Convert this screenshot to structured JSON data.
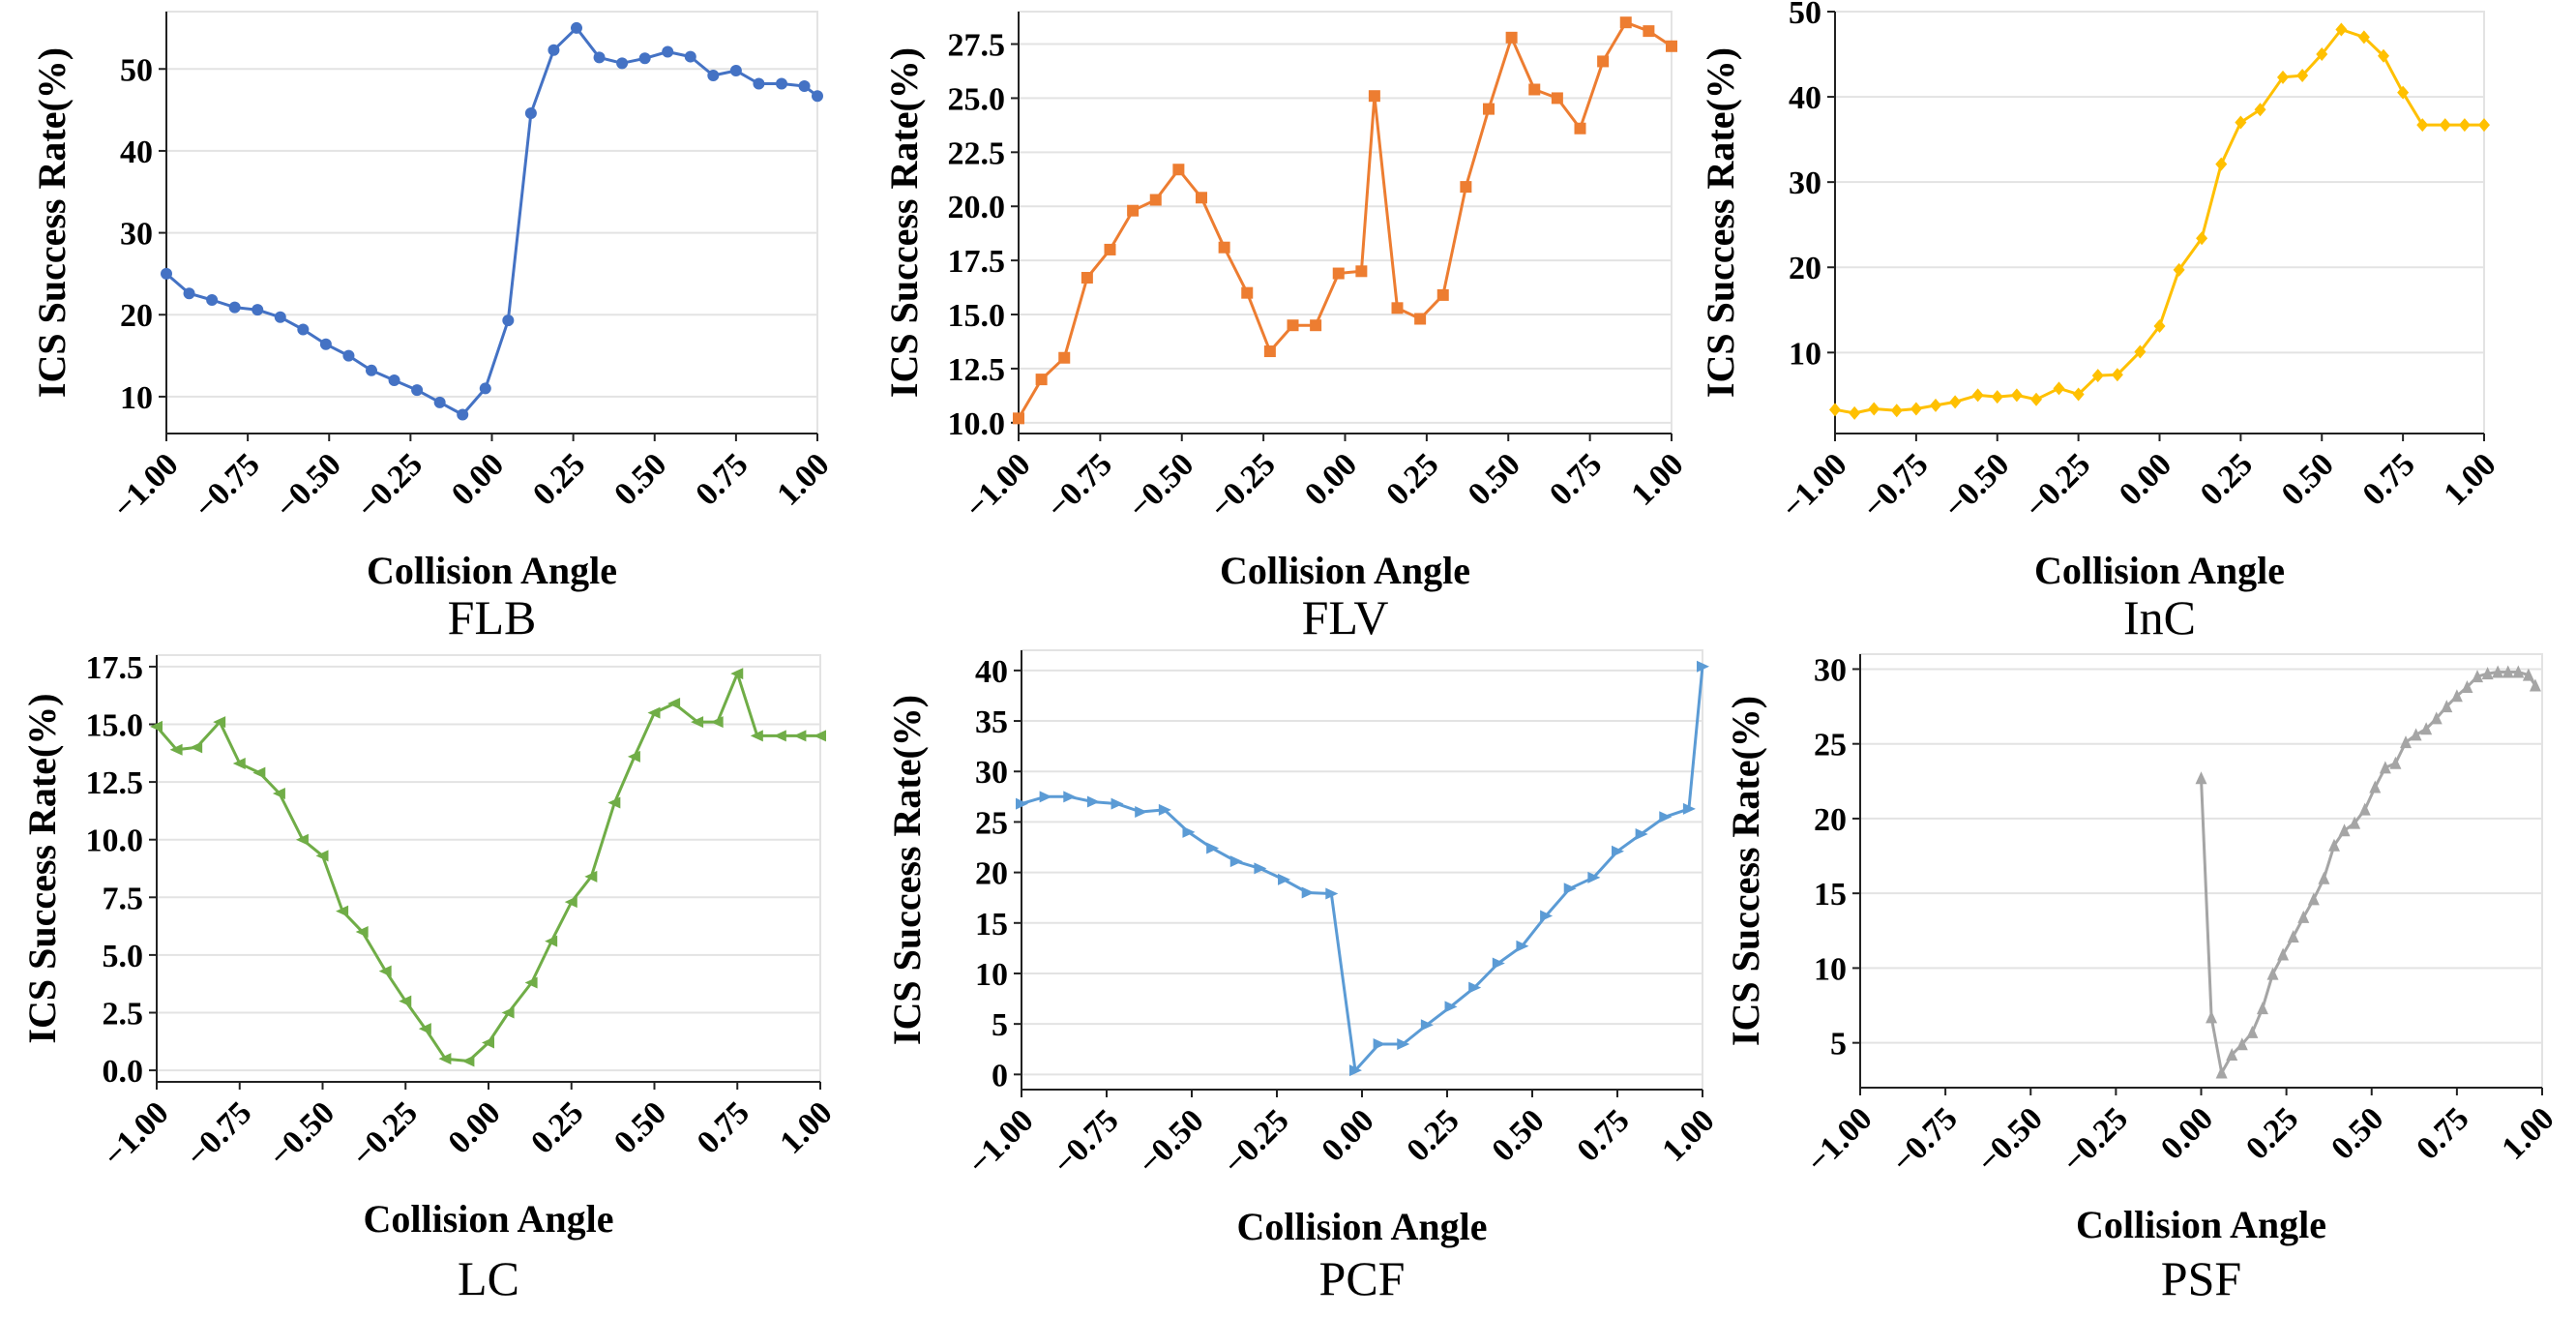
{
  "chart_data": [
    {
      "type": "line",
      "caption": "FLB",
      "xlabel": "Collision Angle",
      "ylabel": "ICS Success Rate(%)",
      "color": "#4472C4",
      "marker": "circle",
      "xlim": [
        -1.0,
        1.0
      ],
      "ylim": [
        5.5,
        57
      ],
      "xticks": [
        "-1.00",
        "-0.75",
        "-0.50",
        "-0.25",
        "0.00",
        "0.25",
        "0.50",
        "0.75",
        "1.00"
      ],
      "yticks": [
        "10",
        "20",
        "30",
        "40",
        "50"
      ],
      "x": [
        -1.0,
        -0.93,
        -0.86,
        -0.79,
        -0.72,
        -0.65,
        -0.58,
        -0.51,
        -0.44,
        -0.37,
        -0.3,
        -0.23,
        -0.16,
        -0.09,
        -0.02,
        0.05,
        0.12,
        0.19,
        0.26,
        0.33,
        0.4,
        0.47,
        0.54,
        0.61,
        0.68,
        0.75,
        0.82,
        0.89,
        0.96,
        1.0
      ],
      "y": [
        25.0,
        22.6,
        21.8,
        20.9,
        20.6,
        19.7,
        18.2,
        16.4,
        15.0,
        13.2,
        12.0,
        10.8,
        9.3,
        7.8,
        11.0,
        19.3,
        44.6,
        52.3,
        55.0,
        51.4,
        50.7,
        51.3,
        52.1,
        51.5,
        49.2,
        49.8,
        48.2,
        48.2,
        47.9,
        46.7
      ]
    },
    {
      "type": "line",
      "caption": "FLV",
      "xlabel": "Collision Angle",
      "ylabel": "ICS Success Rate(%)",
      "color": "#ED7D31",
      "marker": "square",
      "xlim": [
        -1.0,
        1.0
      ],
      "ylim": [
        9.5,
        29.0
      ],
      "xticks": [
        "-1.00",
        "-0.75",
        "-0.50",
        "-0.25",
        "0.00",
        "0.25",
        "0.50",
        "0.75",
        "1.00"
      ],
      "yticks": [
        "10.0",
        "12.5",
        "15.0",
        "17.5",
        "20.0",
        "22.5",
        "25.0",
        "27.5"
      ],
      "x": [
        -1.0,
        -0.93,
        -0.86,
        -0.79,
        -0.72,
        -0.65,
        -0.58,
        -0.51,
        -0.44,
        -0.37,
        -0.3,
        -0.23,
        -0.16,
        -0.09,
        -0.02,
        0.05,
        0.09,
        0.16,
        0.23,
        0.3,
        0.37,
        0.44,
        0.51,
        0.58,
        0.65,
        0.72,
        0.79,
        0.86,
        0.93,
        1.0
      ],
      "y": [
        10.2,
        12.0,
        13.0,
        16.7,
        18.0,
        19.8,
        20.3,
        21.7,
        20.4,
        18.1,
        16.0,
        13.3,
        14.5,
        14.5,
        16.9,
        17.0,
        25.1,
        15.3,
        14.8,
        15.9,
        20.9,
        24.5,
        27.8,
        25.4,
        25.0,
        23.6,
        26.7,
        28.5,
        28.1,
        27.4
      ]
    },
    {
      "type": "line",
      "caption": "InC",
      "xlabel": "Collision Angle",
      "ylabel": "ICS Success Rate(%)",
      "color": "#FFC000",
      "marker": "diamond",
      "xlim": [
        -1.0,
        1.0
      ],
      "ylim": [
        0.5,
        50.0
      ],
      "xticks": [
        "-1.00",
        "-0.75",
        "-0.50",
        "-0.25",
        "0.00",
        "0.25",
        "0.50",
        "0.75",
        "1.00"
      ],
      "yticks": [
        "10",
        "20",
        "30",
        "40",
        "50"
      ],
      "x": [
        -1.0,
        -0.94,
        -0.88,
        -0.81,
        -0.75,
        -0.69,
        -0.63,
        -0.56,
        -0.5,
        -0.44,
        -0.38,
        -0.31,
        -0.25,
        -0.19,
        -0.13,
        -0.06,
        0.0,
        0.06,
        0.13,
        0.19,
        0.25,
        0.31,
        0.38,
        0.44,
        0.5,
        0.56,
        0.63,
        0.69,
        0.75,
        0.81,
        0.88,
        0.94,
        1.0
      ],
      "y": [
        3.3,
        2.9,
        3.4,
        3.2,
        3.4,
        3.8,
        4.2,
        5.0,
        4.8,
        5.0,
        4.5,
        5.8,
        5.1,
        7.3,
        7.4,
        10.1,
        13.1,
        19.7,
        23.4,
        32.1,
        37.0,
        38.5,
        42.3,
        42.5,
        45.0,
        47.9,
        47.0,
        44.8,
        40.5,
        36.7,
        36.7,
        36.7,
        36.7
      ]
    },
    {
      "type": "line",
      "caption": "LC",
      "xlabel": "Collision Angle",
      "ylabel": "ICS Success Rate(%)",
      "color": "#70AD47",
      "marker": "triangle-left",
      "xlim": [
        -1.0,
        1.0
      ],
      "ylim": [
        -0.5,
        18.0
      ],
      "xticks": [
        "-1.00",
        "-0.75",
        "-0.50",
        "-0.25",
        "0.00",
        "0.25",
        "0.50",
        "0.75",
        "1.00"
      ],
      "yticks": [
        "0.0",
        "2.5",
        "5.0",
        "7.5",
        "10.0",
        "12.5",
        "15.0",
        "17.5"
      ],
      "x": [
        -1.0,
        -0.94,
        -0.88,
        -0.81,
        -0.75,
        -0.69,
        -0.63,
        -0.56,
        -0.5,
        -0.44,
        -0.38,
        -0.31,
        -0.25,
        -0.19,
        -0.13,
        -0.06,
        0.0,
        0.06,
        0.13,
        0.19,
        0.25,
        0.31,
        0.38,
        0.44,
        0.5,
        0.56,
        0.63,
        0.69,
        0.75,
        0.81,
        0.88,
        0.94,
        1.0
      ],
      "y": [
        14.9,
        13.9,
        14.0,
        15.1,
        13.3,
        12.9,
        12.0,
        10.0,
        9.3,
        6.9,
        6.0,
        4.3,
        3.0,
        1.8,
        0.5,
        0.4,
        1.2,
        2.5,
        3.8,
        5.6,
        7.3,
        8.4,
        11.6,
        13.6,
        15.5,
        15.9,
        15.1,
        15.1,
        17.2,
        14.5,
        14.5,
        14.5,
        14.5
      ]
    },
    {
      "type": "line",
      "caption": "PCF",
      "xlabel": "Collision Angle",
      "ylabel": "ICS Success Rate(%)",
      "color": "#5B9BD5",
      "marker": "triangle-right",
      "xlim": [
        -1.0,
        1.0
      ],
      "ylim": [
        -1.5,
        42.0
      ],
      "xticks": [
        "-1.00",
        "-0.75",
        "-0.50",
        "-0.25",
        "0.00",
        "0.25",
        "0.50",
        "0.75",
        "1.00"
      ],
      "yticks": [
        "0",
        "5",
        "10",
        "15",
        "20",
        "25",
        "30",
        "35",
        "40"
      ],
      "x": [
        -1.0,
        -0.93,
        -0.86,
        -0.79,
        -0.72,
        -0.65,
        -0.58,
        -0.51,
        -0.44,
        -0.37,
        -0.3,
        -0.23,
        -0.16,
        -0.09,
        -0.02,
        0.05,
        0.12,
        0.19,
        0.26,
        0.33,
        0.4,
        0.47,
        0.54,
        0.61,
        0.68,
        0.75,
        0.82,
        0.89,
        0.96,
        1.0
      ],
      "y": [
        26.8,
        27.5,
        27.5,
        27.0,
        26.8,
        26.0,
        26.2,
        24.0,
        22.4,
        21.1,
        20.4,
        19.3,
        18.0,
        17.9,
        0.4,
        3.0,
        3.0,
        4.9,
        6.7,
        8.6,
        11.0,
        12.7,
        15.7,
        18.4,
        19.5,
        22.1,
        23.8,
        25.5,
        26.3,
        40.4
      ]
    },
    {
      "type": "line",
      "caption": "PSF",
      "xlabel": "Collision Angle",
      "ylabel": "ICS Success Rate(%)",
      "color": "#A5A5A5",
      "marker": "triangle-up",
      "xlim": [
        -1.0,
        1.0
      ],
      "ylim": [
        2.0,
        31.0
      ],
      "xticks": [
        "-1.00",
        "-0.75",
        "-0.50",
        "-0.25",
        "0.00",
        "0.25",
        "0.50",
        "0.75",
        "1.00"
      ],
      "yticks": [
        "5",
        "10",
        "15",
        "20",
        "25",
        "30"
      ],
      "x": [
        0.0,
        0.03,
        0.06,
        0.09,
        0.12,
        0.15,
        0.18,
        0.21,
        0.24,
        0.27,
        0.3,
        0.33,
        0.36,
        0.39,
        0.42,
        0.45,
        0.48,
        0.51,
        0.54,
        0.57,
        0.6,
        0.63,
        0.66,
        0.69,
        0.72,
        0.75,
        0.78,
        0.81,
        0.84,
        0.87,
        0.9,
        0.93,
        0.96,
        0.98
      ],
      "y": [
        22.7,
        6.7,
        3.0,
        4.2,
        4.9,
        5.7,
        7.3,
        9.6,
        10.9,
        12.1,
        13.4,
        14.6,
        16.0,
        18.2,
        19.2,
        19.7,
        20.6,
        22.1,
        23.4,
        23.7,
        25.1,
        25.6,
        26.0,
        26.7,
        27.5,
        28.2,
        28.8,
        29.5,
        29.7,
        29.8,
        29.8,
        29.8,
        29.6,
        28.9
      ]
    }
  ]
}
